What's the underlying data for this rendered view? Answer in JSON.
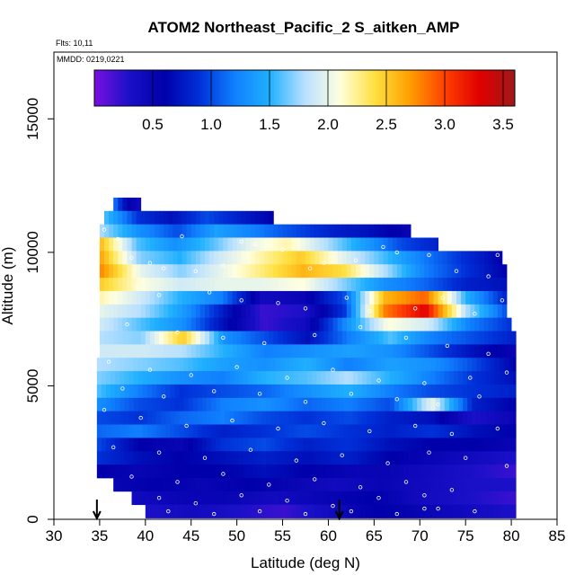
{
  "chart_data": {
    "type": "heatmap",
    "title": "ATOM2 Northeast_Pacific_2 S_aitken_AMP",
    "subtitle_lines": [
      "Flts: 10,11",
      "MMDD: 0219,0221"
    ],
    "xlabel": "Latitude (deg N)",
    "ylabel": "Altitude (m)",
    "xlim": [
      30,
      85
    ],
    "ylim": [
      0,
      17500
    ],
    "x_ticks": [
      30,
      35,
      40,
      45,
      50,
      55,
      60,
      65,
      70,
      75,
      80,
      85
    ],
    "y_ticks": [
      0,
      5000,
      10000,
      15000
    ],
    "colorbar": {
      "ticks": [
        0.5,
        1.0,
        1.5,
        2.0,
        2.5,
        3.0,
        3.5
      ],
      "tick_labels": [
        "0.5",
        "1.0",
        "1.5",
        "2.0",
        "2.5",
        "3.0",
        "3.5"
      ],
      "range": [
        0.0,
        3.6
      ],
      "colors": [
        "#7a10e0",
        "#1a10c8",
        "#0000aa",
        "#0030d8",
        "#1080ff",
        "#20b0ff",
        "#b8e0ff",
        "#ffffe0",
        "#ffe040",
        "#ffa000",
        "#ff4000",
        "#e00000",
        "#a01818"
      ]
    },
    "markers": {
      "down_arrows_lat": [
        34.7,
        61.2
      ]
    },
    "layers": [
      {
        "alt": 11800,
        "lat_min": 36.5,
        "lat_max": 39.5,
        "values": [
          1.2,
          0.6,
          0.4
        ]
      },
      {
        "alt": 11300,
        "lat_min": 35.5,
        "lat_max": 54.0,
        "values": [
          1.6,
          0.9,
          0.7,
          1.0,
          0.8,
          0.6
        ]
      },
      {
        "alt": 10800,
        "lat_min": 35.0,
        "lat_max": 69.0,
        "values": [
          1.8,
          1.3,
          1.0,
          1.4,
          1.2,
          1.0,
          0.8,
          0.7,
          0.5
        ]
      },
      {
        "alt": 10300,
        "lat_min": 35.0,
        "lat_max": 72.0,
        "values": [
          2.6,
          1.6,
          1.3,
          1.6,
          2.0,
          2.2,
          1.8,
          1.4,
          1.0,
          0.8
        ]
      },
      {
        "alt": 9800,
        "lat_min": 35.0,
        "lat_max": 79.0,
        "values": [
          2.7,
          1.7,
          1.5,
          1.9,
          2.2,
          2.5,
          2.0,
          1.6,
          1.2,
          0.9,
          0.6
        ]
      },
      {
        "alt": 9300,
        "lat_min": 35.0,
        "lat_max": 79.5,
        "values": [
          2.8,
          2.0,
          1.7,
          2.0,
          2.3,
          2.6,
          2.4,
          1.8,
          1.2,
          0.9,
          0.6
        ]
      },
      {
        "alt": 8800,
        "lat_min": 35.0,
        "lat_max": 79.5,
        "values": [
          2.5,
          2.1,
          1.9,
          2.0,
          2.0,
          2.1,
          1.7,
          1.3,
          1.1,
          0.8,
          0.7
        ]
      },
      {
        "alt": 8300,
        "lat_min": 35.0,
        "lat_max": 79.5,
        "values": [
          2.2,
          1.9,
          1.5,
          1.2,
          0.4,
          0.5,
          1.0,
          2.6,
          2.9,
          1.5,
          0.8
        ]
      },
      {
        "alt": 7800,
        "lat_min": 35.0,
        "lat_max": 79.5,
        "values": [
          2.0,
          1.8,
          1.4,
          0.8,
          0.2,
          0.3,
          0.9,
          2.8,
          3.3,
          1.8,
          1.0
        ]
      },
      {
        "alt": 7300,
        "lat_min": 35.0,
        "lat_max": 80.0,
        "values": [
          1.9,
          1.6,
          1.3,
          0.7,
          0.2,
          0.4,
          1.3,
          2.1,
          1.9,
          1.2,
          0.9
        ]
      },
      {
        "alt": 6800,
        "lat_min": 35.0,
        "lat_max": 80.5,
        "values": [
          1.8,
          1.7,
          2.5,
          1.3,
          1.0,
          0.7,
          1.2,
          1.6,
          1.2,
          1.0,
          0.8
        ]
      },
      {
        "alt": 6300,
        "lat_min": 35.0,
        "lat_max": 80.5,
        "values": [
          1.9,
          1.9,
          1.8,
          1.5,
          1.2,
          1.3,
          1.4,
          1.3,
          1.0,
          0.7,
          0.5
        ]
      },
      {
        "alt": 5800,
        "lat_min": 34.7,
        "lat_max": 80.5,
        "values": [
          1.8,
          1.7,
          1.6,
          1.4,
          1.3,
          1.5,
          1.2,
          1.4,
          1.3,
          1.0,
          0.6
        ]
      },
      {
        "alt": 5300,
        "lat_min": 34.7,
        "lat_max": 80.5,
        "values": [
          1.7,
          1.5,
          1.3,
          1.2,
          1.5,
          1.6,
          1.8,
          1.5,
          1.2,
          0.9,
          0.7
        ]
      },
      {
        "alt": 4800,
        "lat_min": 34.7,
        "lat_max": 80.5,
        "values": [
          1.6,
          1.2,
          0.9,
          1.0,
          1.1,
          1.3,
          1.5,
          1.2,
          1.0,
          0.9,
          0.8
        ]
      },
      {
        "alt": 4300,
        "lat_min": 34.7,
        "lat_max": 80.5,
        "values": [
          1.3,
          1.0,
          0.9,
          1.2,
          1.3,
          1.1,
          1.2,
          1.0,
          2.0,
          0.8,
          0.6
        ]
      },
      {
        "alt": 3800,
        "lat_min": 34.7,
        "lat_max": 80.5,
        "values": [
          1.0,
          0.9,
          1.1,
          1.2,
          1.0,
          0.9,
          1.0,
          0.8,
          0.7,
          0.3,
          0.5
        ]
      },
      {
        "alt": 3300,
        "lat_min": 34.7,
        "lat_max": 80.5,
        "values": [
          1.1,
          1.2,
          1.0,
          0.8,
          0.9,
          1.0,
          0.9,
          0.8,
          0.9,
          0.7,
          0.6
        ]
      },
      {
        "alt": 2800,
        "lat_min": 34.7,
        "lat_max": 80.5,
        "values": [
          1.0,
          0.6,
          0.5,
          0.9,
          1.0,
          0.8,
          0.9,
          0.7,
          0.6,
          0.6,
          0.5
        ]
      },
      {
        "alt": 2300,
        "lat_min": 34.7,
        "lat_max": 80.5,
        "values": [
          0.9,
          0.7,
          0.6,
          0.7,
          0.8,
          0.7,
          0.8,
          0.6,
          0.5,
          0.4,
          0.3
        ]
      },
      {
        "alt": 1800,
        "lat_min": 34.7,
        "lat_max": 80.5,
        "values": [
          0.6,
          0.5,
          0.6,
          0.6,
          0.7,
          0.6,
          0.5,
          0.5,
          0.4,
          0.3,
          0.2
        ]
      },
      {
        "alt": 1300,
        "lat_min": 36.5,
        "lat_max": 80.5,
        "values": [
          0.5,
          0.6,
          0.5,
          0.6,
          0.5,
          0.4,
          0.5,
          0.4,
          0.3,
          0.3
        ]
      },
      {
        "alt": 800,
        "lat_min": 38.5,
        "lat_max": 80.5,
        "values": [
          0.4,
          0.5,
          0.5,
          0.4,
          0.5,
          0.6,
          0.4,
          0.3,
          0.2
        ]
      },
      {
        "alt": 300,
        "lat_min": 40.0,
        "lat_max": 80.5,
        "values": [
          0.3,
          0.4,
          0.3,
          0.2,
          0.4,
          0.6,
          0.5,
          0.4,
          0.3
        ]
      }
    ],
    "sample_points": [
      [
        35.5,
        10850
      ],
      [
        37.0,
        10500
      ],
      [
        38.5,
        9800
      ],
      [
        40.5,
        9600
      ],
      [
        42.0,
        9400
      ],
      [
        45.5,
        9300
      ],
      [
        48.5,
        9500
      ],
      [
        52.0,
        10300
      ],
      [
        55.0,
        10100
      ],
      [
        58.0,
        9400
      ],
      [
        59.5,
        9600
      ],
      [
        63.0,
        9700
      ],
      [
        67.5,
        10000
      ],
      [
        71.0,
        9900
      ],
      [
        74.0,
        9300
      ],
      [
        77.5,
        9100
      ],
      [
        78.5,
        9900
      ],
      [
        66.0,
        10200
      ],
      [
        50.5,
        10400
      ],
      [
        44.0,
        10600
      ],
      [
        39.0,
        8700
      ],
      [
        41.5,
        8400
      ],
      [
        47.0,
        8500
      ],
      [
        50.5,
        8200
      ],
      [
        54.5,
        8100
      ],
      [
        57.5,
        7900
      ],
      [
        62.0,
        8300
      ],
      [
        64.5,
        7800
      ],
      [
        69.5,
        7900
      ],
      [
        72.5,
        8300
      ],
      [
        76.0,
        7700
      ],
      [
        79.0,
        8200
      ],
      [
        38.0,
        7300
      ],
      [
        43.5,
        7000
      ],
      [
        48.5,
        6800
      ],
      [
        53.0,
        6600
      ],
      [
        58.5,
        6900
      ],
      [
        63.5,
        7200
      ],
      [
        68.5,
        6800
      ],
      [
        73.0,
        6500
      ],
      [
        77.5,
        6200
      ],
      [
        36.0,
        5900
      ],
      [
        40.5,
        5600
      ],
      [
        45.0,
        5400
      ],
      [
        50.0,
        5700
      ],
      [
        55.5,
        5300
      ],
      [
        60.5,
        5600
      ],
      [
        65.5,
        5200
      ],
      [
        70.5,
        5100
      ],
      [
        75.5,
        5300
      ],
      [
        79.5,
        5500
      ],
      [
        37.5,
        4900
      ],
      [
        42.0,
        4600
      ],
      [
        47.5,
        4800
      ],
      [
        52.5,
        4700
      ],
      [
        57.5,
        4400
      ],
      [
        62.5,
        4700
      ],
      [
        67.5,
        4500
      ],
      [
        72.0,
        4300
      ],
      [
        76.5,
        4600
      ],
      [
        35.5,
        4100
      ],
      [
        39.5,
        3800
      ],
      [
        44.5,
        3500
      ],
      [
        49.5,
        3700
      ],
      [
        54.5,
        3400
      ],
      [
        59.5,
        3600
      ],
      [
        64.5,
        3300
      ],
      [
        69.5,
        3500
      ],
      [
        73.5,
        3200
      ],
      [
        78.5,
        3400
      ],
      [
        36.5,
        2700
      ],
      [
        41.5,
        2500
      ],
      [
        46.5,
        2300
      ],
      [
        51.5,
        2600
      ],
      [
        56.5,
        2200
      ],
      [
        61.5,
        2400
      ],
      [
        66.5,
        2100
      ],
      [
        71.0,
        2500
      ],
      [
        75.0,
        2300
      ],
      [
        79.5,
        2000
      ],
      [
        38.5,
        1600
      ],
      [
        43.5,
        1400
      ],
      [
        48.5,
        1700
      ],
      [
        53.5,
        1300
      ],
      [
        58.5,
        1500
      ],
      [
        63.5,
        1200
      ],
      [
        68.5,
        1400
      ],
      [
        70.5,
        900
      ],
      [
        73.5,
        1100
      ],
      [
        41.5,
        800
      ],
      [
        45.5,
        600
      ],
      [
        50.5,
        900
      ],
      [
        55.5,
        700
      ],
      [
        60.5,
        500
      ],
      [
        65.5,
        800
      ],
      [
        70.5,
        400
      ],
      [
        42.5,
        300
      ],
      [
        47.5,
        200
      ],
      [
        52.5,
        300
      ],
      [
        57.5,
        200
      ],
      [
        62.5,
        300
      ],
      [
        67.5,
        200
      ],
      [
        72.0,
        400
      ],
      [
        76.0,
        300
      ]
    ]
  }
}
